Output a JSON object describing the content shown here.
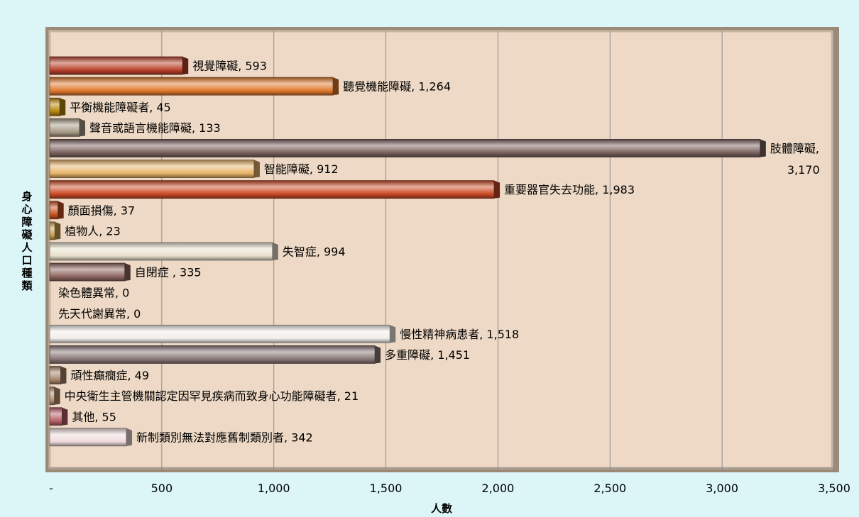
{
  "chart_data": {
    "type": "bar",
    "orientation": "horizontal",
    "xlabel": "人數",
    "ylabel": "身心障礙人口種類",
    "xlim": [
      0,
      3500
    ],
    "xticks": [
      0,
      500,
      1000,
      1500,
      2000,
      2500,
      3000,
      3500
    ],
    "xtick_labels": [
      "-",
      "500",
      "1,000",
      "1,500",
      "2,000",
      "2,500",
      "3,000",
      "3,500"
    ],
    "grid": "vertical",
    "categories": [
      "視覺障礙",
      "聽覺機能障礙",
      "平衡機能障礙者",
      "聲音或語言機能障礙",
      "肢體障礙",
      "智能障礙",
      "重要器官失去功能",
      "顏面損傷",
      "植物人",
      "失智症",
      "自閉症 ",
      "染色體異常",
      "先天代謝異常",
      "慢性精神病患者",
      "多重障礙",
      "頑性癲癇症",
      "中央衛生主管機關認定因罕見疾病而致身心功能障礙者",
      "其他",
      "新制類別無法對應舊制類別者"
    ],
    "values": [
      593,
      1264,
      45,
      133,
      3170,
      912,
      1983,
      37,
      23,
      994,
      335,
      0,
      0,
      1518,
      1451,
      49,
      21,
      55,
      342
    ],
    "data_labels": [
      "視覺障礙, 593",
      "聽覺機能障礙, 1,264",
      "平衡機能障礙者, 45",
      "聲音或語言機能障礙, 133",
      "肢體障礙, 3,170",
      "智能障礙, 912",
      "重要器官失去功能, 1,983",
      "顏面損傷, 37",
      "植物人, 23",
      "失智症, 994",
      "自閉症 , 335",
      "染色體異常, 0",
      "先天代謝異常, 0",
      "慢性精神病患者, 1,518",
      "多重障礙, 1,451",
      "頑性癲癇症, 49",
      "中央衛生主管機關認定因罕見疾病而致身心功能障礙者, 21",
      "其他, 55",
      "新制類別無法對應舊制類別者, 342"
    ],
    "colors": [
      "#b8402a",
      "#e07a2e",
      "#b8860b",
      "#a89c86",
      "#7a625e",
      "#e8b46a",
      "#cc4a26",
      "#c85020",
      "#c8a050",
      "#e8e0cc",
      "#8e6660",
      "#cccccc",
      "#cccccc",
      "#f2eeea",
      "#8a7878",
      "#a8866a",
      "#b89070",
      "#b86068",
      "#f0dcdc"
    ],
    "plot_background": "#edd9c5",
    "page_background": "#dcf6f8"
  }
}
